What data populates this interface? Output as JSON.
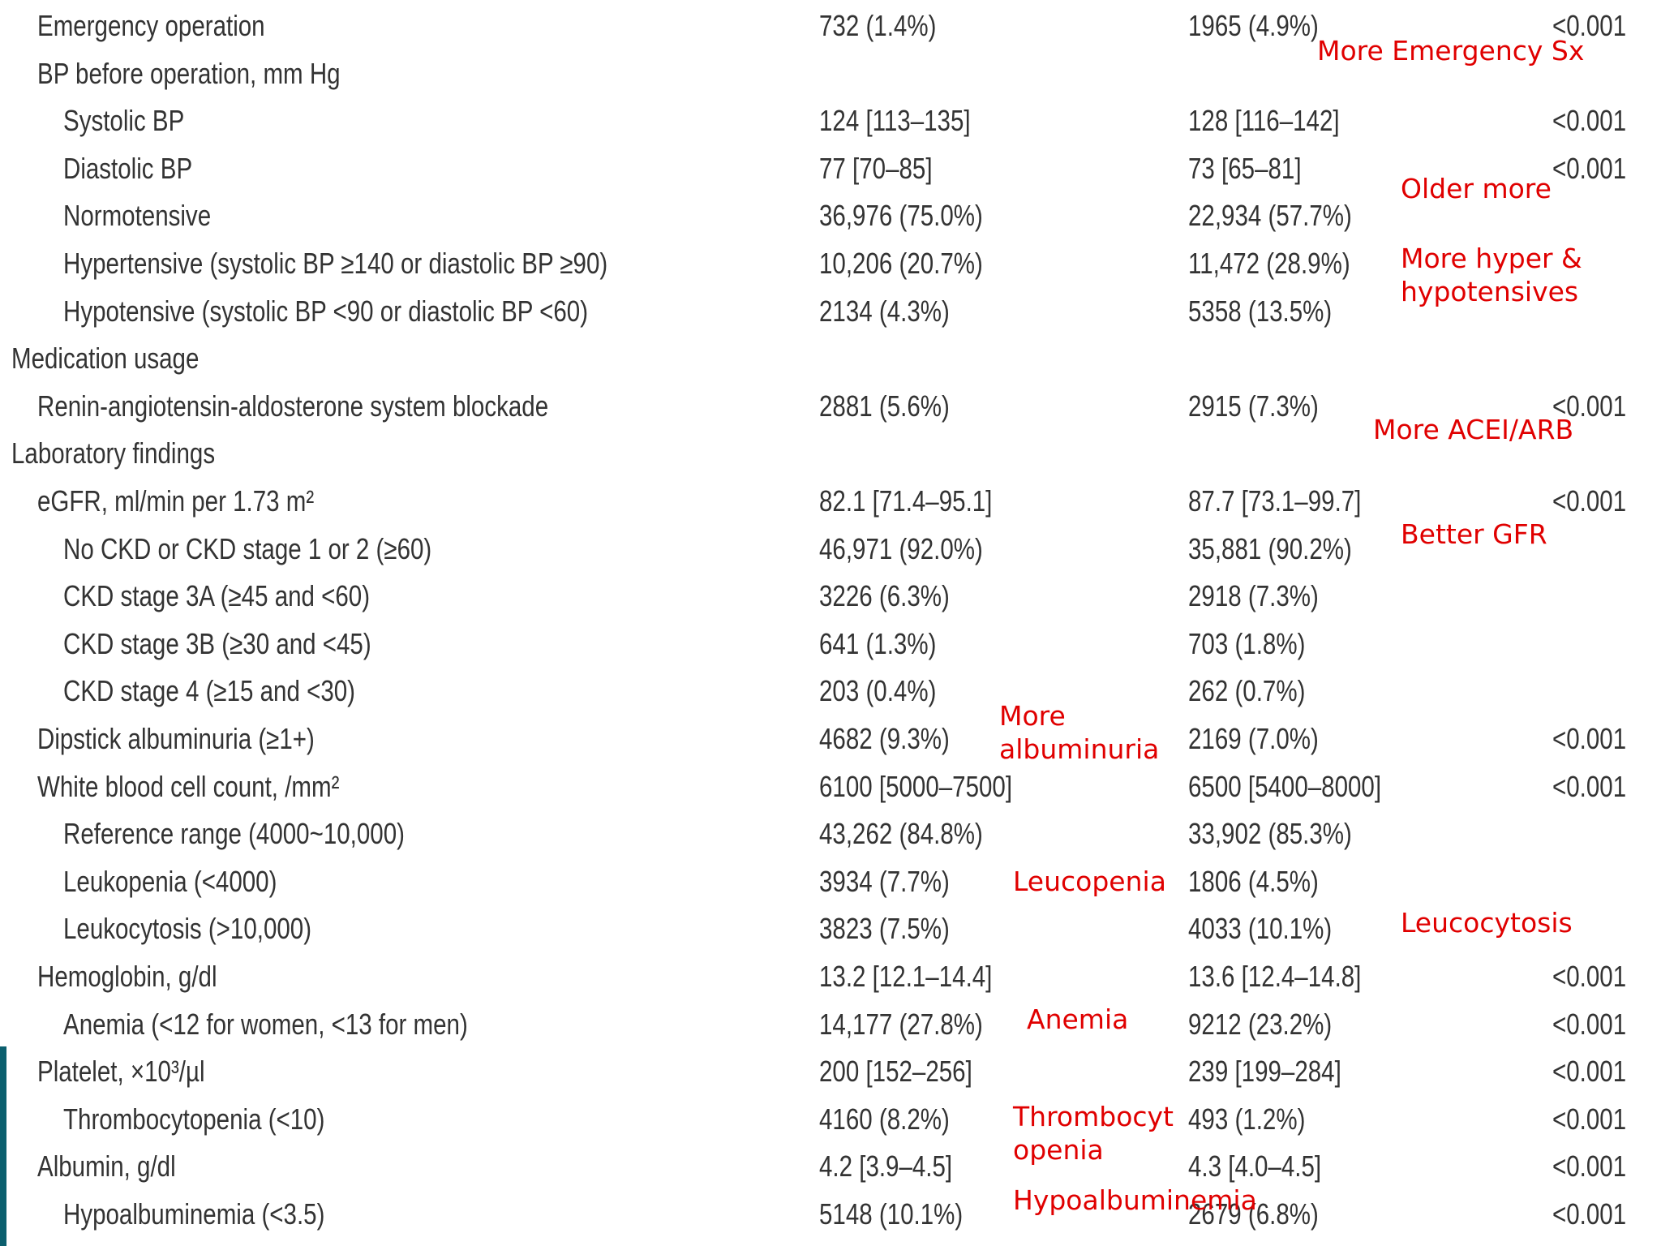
{
  "table": {
    "rows": [
      {
        "label": "Emergency operation",
        "level": 1,
        "col1": "732 (1.4%)",
        "col2": "1965 (4.9%)",
        "p": "<0.001"
      },
      {
        "label": "BP before operation, mm Hg",
        "level": 1,
        "col1": "",
        "col2": "",
        "p": ""
      },
      {
        "label": "Systolic BP",
        "level": 2,
        "col1": "124 [113–135]",
        "col2": "128 [116–142]",
        "p": "<0.001"
      },
      {
        "label": "Diastolic BP",
        "level": 2,
        "col1": "77 [70–85]",
        "col2": "73 [65–81]",
        "p": "<0.001"
      },
      {
        "label": "Normotensive",
        "level": 2,
        "col1": "36,976 (75.0%)",
        "col2": "22,934 (57.7%)",
        "p": ""
      },
      {
        "label": "Hypertensive (systolic BP ≥140 or diastolic BP ≥90)",
        "level": 2,
        "col1": "10,206 (20.7%)",
        "col2": "11,472 (28.9%)",
        "p": ""
      },
      {
        "label": "Hypotensive (systolic BP <90 or diastolic BP <60)",
        "level": 2,
        "col1": "2134 (4.3%)",
        "col2": "5358 (13.5%)",
        "p": ""
      },
      {
        "label": "Medication usage",
        "level": 0,
        "col1": "",
        "col2": "",
        "p": ""
      },
      {
        "label": "Renin-angiotensin-aldosterone system blockade",
        "level": 1,
        "col1": "2881 (5.6%)",
        "col2": "2915 (7.3%)",
        "p": "<0.001"
      },
      {
        "label": "Laboratory findings",
        "level": 0,
        "col1": "",
        "col2": "",
        "p": ""
      },
      {
        "label": "eGFR, ml/min per 1.73 m²",
        "level": 1,
        "col1": "82.1 [71.4–95.1]",
        "col2": "87.7 [73.1–99.7]",
        "p": "<0.001"
      },
      {
        "label": "No CKD or CKD stage 1 or 2 (≥60)",
        "level": 2,
        "col1": "46,971 (92.0%)",
        "col2": "35,881 (90.2%)",
        "p": ""
      },
      {
        "label": "CKD stage 3A (≥45 and <60)",
        "level": 2,
        "col1": "3226 (6.3%)",
        "col2": "2918 (7.3%)",
        "p": ""
      },
      {
        "label": "CKD stage 3B (≥30 and <45)",
        "level": 2,
        "col1": "641 (1.3%)",
        "col2": "703 (1.8%)",
        "p": ""
      },
      {
        "label": "CKD stage 4 (≥15 and <30)",
        "level": 2,
        "col1": "203 (0.4%)",
        "col2": "262 (0.7%)",
        "p": ""
      },
      {
        "label": "Dipstick albuminuria (≥1+)",
        "level": 1,
        "col1": "4682 (9.3%)",
        "col2": "2169 (7.0%)",
        "p": "<0.001"
      },
      {
        "label": "White blood cell count, /mm²",
        "level": 1,
        "col1": "6100 [5000–7500]",
        "col2": "6500 [5400–8000]",
        "p": "<0.001"
      },
      {
        "label": "Reference range (4000~10,000)",
        "level": 2,
        "col1": "43,262 (84.8%)",
        "col2": "33,902 (85.3%)",
        "p": ""
      },
      {
        "label": "Leukopenia (<4000)",
        "level": 2,
        "col1": "3934 (7.7%)",
        "col2": "1806 (4.5%)",
        "p": ""
      },
      {
        "label": "Leukocytosis (>10,000)",
        "level": 2,
        "col1": "3823 (7.5%)",
        "col2": "4033 (10.1%)",
        "p": ""
      },
      {
        "label": "Hemoglobin, g/dl",
        "level": 1,
        "col1": "13.2 [12.1–14.4]",
        "col2": "13.6 [12.4–14.8]",
        "p": "<0.001"
      },
      {
        "label": "Anemia (<12 for women, <13 for men)",
        "level": 2,
        "col1": "14,177 (27.8%)",
        "col2": "9212 (23.2%)",
        "p": "<0.001"
      },
      {
        "label": "Platelet, ×10³/µl",
        "level": 1,
        "col1": "200 [152–256]",
        "col2": "239 [199–284]",
        "p": "<0.001"
      },
      {
        "label": "Thrombocytopenia (<10)",
        "level": 2,
        "col1": "4160 (8.2%)",
        "col2": "493 (1.2%)",
        "p": "<0.001"
      },
      {
        "label": "Albumin, g/dl",
        "level": 1,
        "col1": "4.2 [3.9–4.5]",
        "col2": "4.3 [4.0–4.5]",
        "p": "<0.001"
      },
      {
        "label": "Hypoalbuminemia (<3.5)",
        "level": 2,
        "col1": "5148 (10.1%)",
        "col2": "2679 (6.8%)",
        "p": "<0.001"
      }
    ]
  },
  "annotations": {
    "emergency": "More Emergency Sx",
    "older": "Older more",
    "hyper_line1": "More hyper &",
    "hyper_line2": "hypotensives",
    "acei": "More ACEI/ARB",
    "gfr": "Better GFR",
    "albuminuria_line1": "More",
    "albuminuria_line2": "albuminuria",
    "leucopenia": "Leucopenia",
    "leucocytosis": "Leucocytosis",
    "anemia": "Anemia",
    "thrombo_line1": "Thrombocyt",
    "thrombo_line2": "openia",
    "hypoalb": "Hypoalbuminemia"
  },
  "colors": {
    "annotation": "#e00000",
    "table_text": "#333333",
    "left_accent": "#0b5f6e"
  }
}
